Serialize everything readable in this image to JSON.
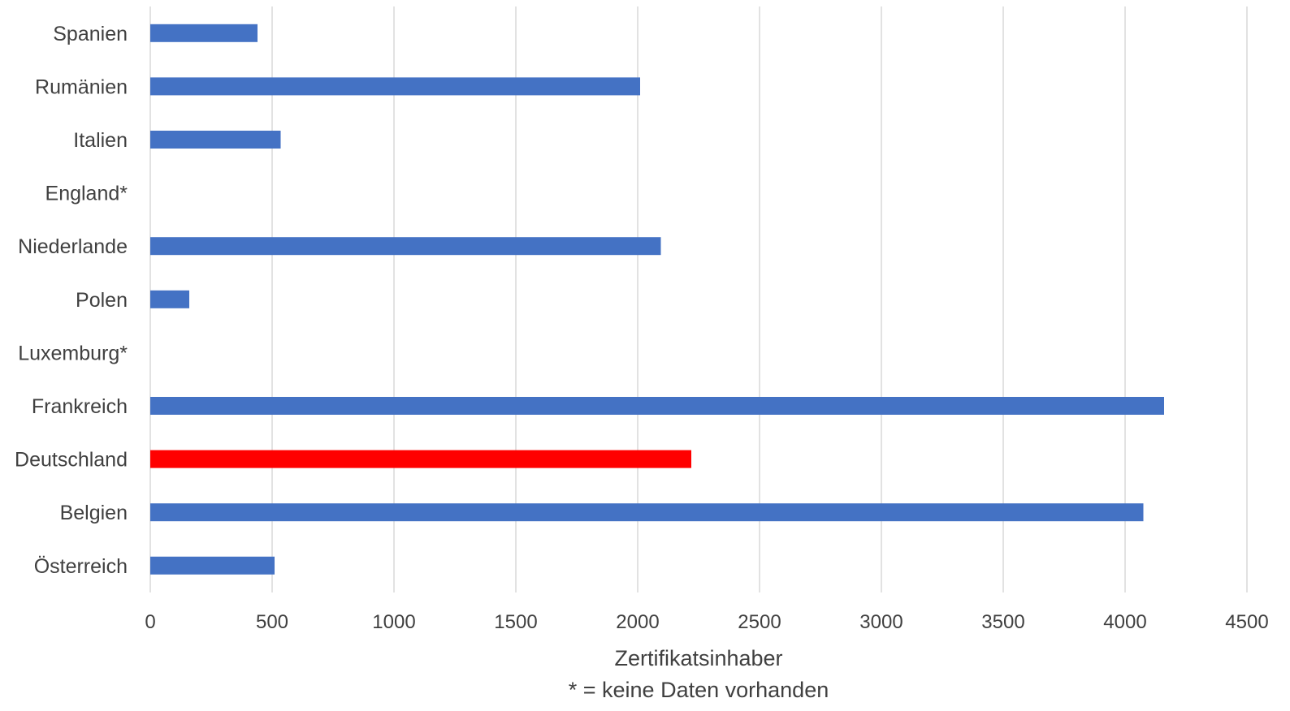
{
  "chart_data": {
    "type": "bar",
    "orientation": "horizontal",
    "categories": [
      "Spanien",
      "Rumänien",
      "Italien",
      "England*",
      "Niederlande",
      "Polen",
      "Luxemburg*",
      "Frankreich",
      "Deutschland",
      "Belgien",
      "Österreich"
    ],
    "values": [
      440,
      2010,
      535,
      null,
      2095,
      160,
      null,
      4160,
      2220,
      4075,
      510
    ],
    "bar_colors": [
      "#4472C4",
      "#4472C4",
      "#4472C4",
      "#4472C4",
      "#4472C4",
      "#4472C4",
      "#4472C4",
      "#4472C4",
      "#FF0000",
      "#4472C4",
      "#4472C4"
    ],
    "xlim": [
      0,
      4500
    ],
    "xticks": [
      "0",
      "500",
      "1000",
      "1500",
      "2000",
      "2500",
      "3000",
      "3500",
      "4000",
      "4500"
    ],
    "xlabel": "Zertifikatsinhaber",
    "note": "* = keine Daten vorhanden",
    "grid": "vertical",
    "legend": "none"
  }
}
